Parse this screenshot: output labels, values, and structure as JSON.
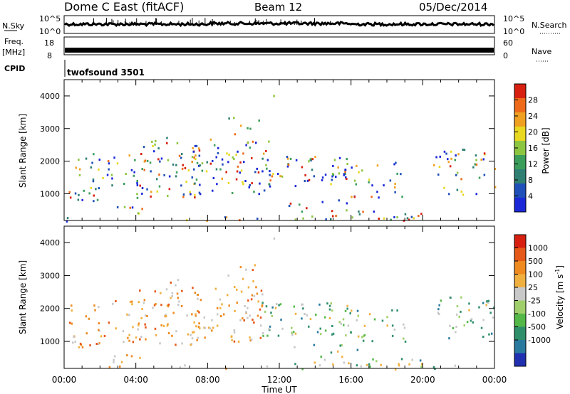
{
  "header": {
    "title": "Dome C East (fitACF)",
    "beam": "Beam 12",
    "date": "05/Dec/2014"
  },
  "top_panels": {
    "nsky_label": "N.Sky",
    "nsky_ticks": [
      "10^5",
      "10^0"
    ],
    "nsearch_label": "N.Search",
    "nsearch_ticks": [
      "10^5",
      "10^0"
    ],
    "freq_label": "Freq.",
    "freq_unit": "[MHz]",
    "freq_ticks": [
      "18",
      "8"
    ],
    "nave_label": "Nave",
    "nave_ticks": [
      "60",
      "0"
    ],
    "cpid_label": "CPID",
    "cpid_value": "twofsound 3501"
  },
  "chart_data": [
    {
      "type": "heatmap",
      "name": "power",
      "ylabel": "Slant Range [km]",
      "ylim": [
        180,
        4500
      ],
      "y_ticks": [
        "1000",
        "2000",
        "3000",
        "4000"
      ],
      "xlim": [
        "00:00",
        "24:00"
      ],
      "colorbar": {
        "label": "Power [dB]",
        "ticks": [
          "4",
          "8",
          "12",
          "16",
          "20",
          "24",
          "28"
        ],
        "range": [
          0,
          32
        ],
        "colors": [
          "#1a28d8",
          "#1f4fb8",
          "#2f7f72",
          "#3a9e5a",
          "#8cc640",
          "#e8d820",
          "#f0a020",
          "#ee6a18",
          "#d82010"
        ]
      }
    },
    {
      "type": "heatmap",
      "name": "velocity",
      "ylabel": "Slant Range [km]",
      "ylim": [
        180,
        4500
      ],
      "y_ticks": [
        "1000",
        "2000",
        "3000",
        "4000"
      ],
      "xlim": [
        "00:00",
        "24:00"
      ],
      "colorbar": {
        "label": "Velocity [m s",
        "label_exp": "-1",
        "label_close": "]",
        "ticks": [
          "1000",
          "500",
          "100",
          "25",
          "-25",
          "-100",
          "-500",
          "-1000"
        ],
        "colors": [
          "#2030b0",
          "#2a7aa0",
          "#2f8f6a",
          "#54b848",
          "#9fcf6a",
          "#c8c8c8",
          "#f0b040",
          "#ee8a20",
          "#e65818",
          "#d82010"
        ]
      }
    }
  ],
  "x_axis": {
    "ticks": [
      "00:00",
      "04:00",
      "08:00",
      "12:00",
      "16:00",
      "20:00",
      "00:00"
    ],
    "label": "Time UT"
  }
}
